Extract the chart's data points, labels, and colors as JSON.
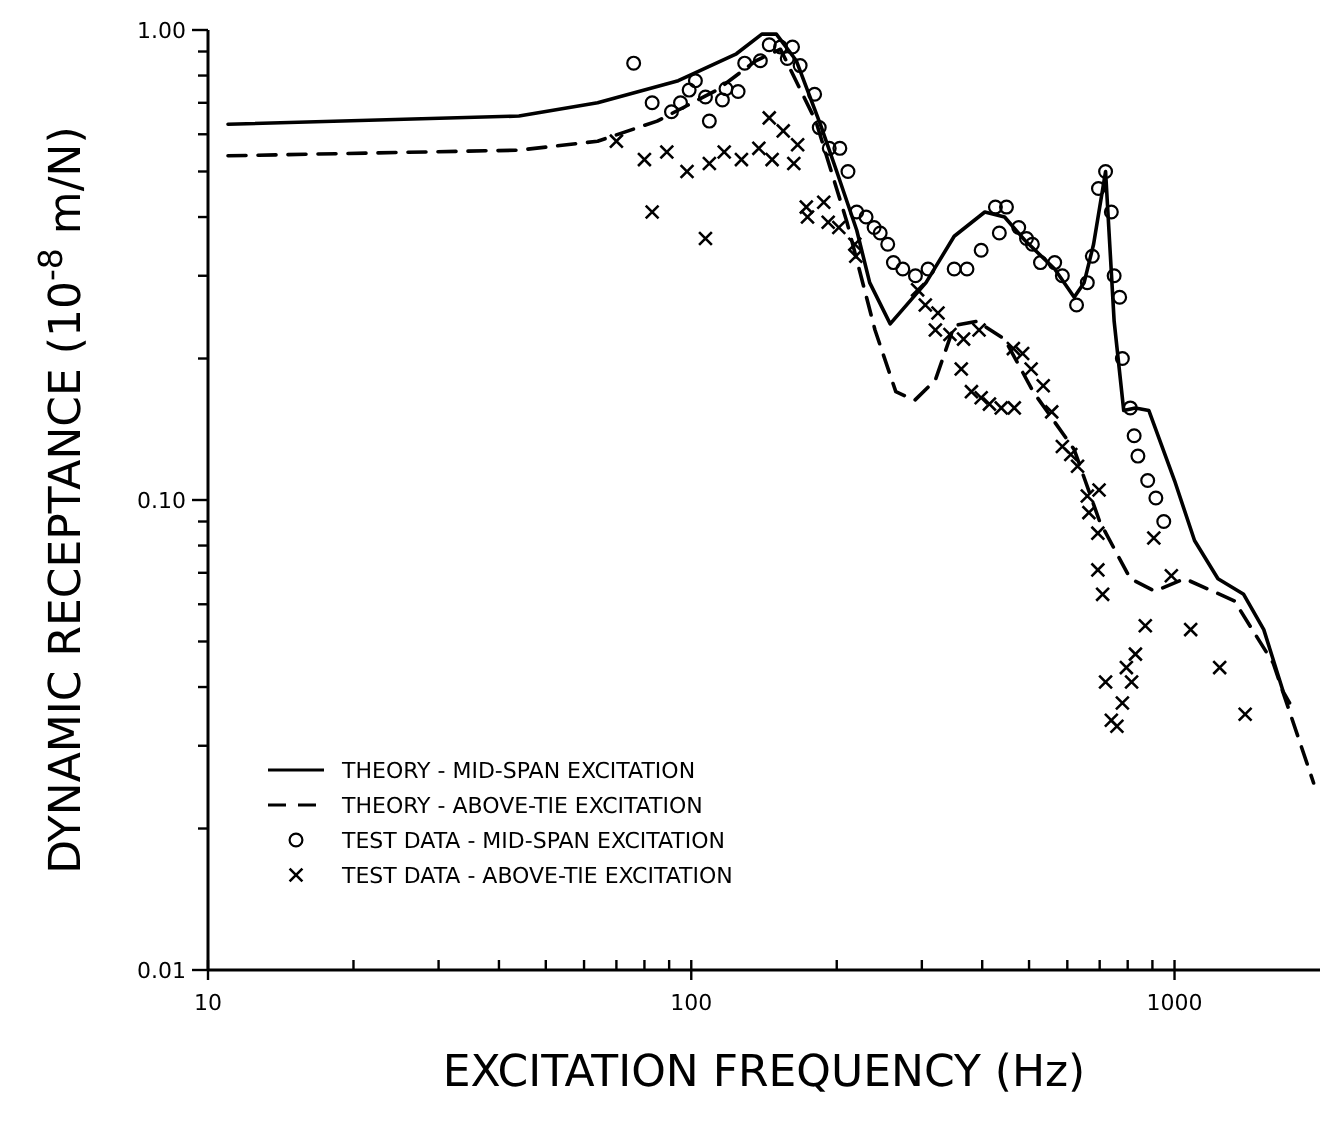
{
  "chart_data": {
    "type": "line",
    "xlabel": "EXCITATION FREQUENCY (Hz)",
    "ylabel": "DYNAMIC RECEPTANCE (10$^{-8}$ m/N)",
    "log": "xy",
    "xlim": [
      10,
      2000
    ],
    "ylim": [
      0.01,
      1.0
    ],
    "xticks": [
      10,
      {
        "value": 20,
        "label": null
      },
      {
        "value": 30,
        "label": null
      },
      {
        "value": 40,
        "label": null
      },
      {
        "value": 50,
        "label": null
      },
      {
        "value": 60,
        "label": null
      },
      {
        "value": 70,
        "label": null
      },
      {
        "value": 80,
        "label": null
      },
      {
        "value": 90,
        "label": null
      },
      100,
      {
        "value": 200,
        "label": null
      },
      {
        "value": 300,
        "label": null
      },
      {
        "value": 400,
        "label": null
      },
      {
        "value": 500,
        "label": null
      },
      {
        "value": 600,
        "label": null
      },
      {
        "value": 700,
        "label": null
      },
      {
        "value": 800,
        "label": null
      },
      {
        "value": 900,
        "label": null
      },
      1000
    ],
    "yticks": [
      {
        "value": 0.01,
        "label": "0.01"
      },
      {
        "value": 0.02,
        "label": null
      },
      {
        "value": 0.03,
        "label": null
      },
      {
        "value": 0.04,
        "label": null
      },
      {
        "value": 0.05,
        "label": null
      },
      {
        "value": 0.06,
        "label": null
      },
      {
        "value": 0.07,
        "label": null
      },
      {
        "value": 0.08,
        "label": null
      },
      {
        "value": 0.09,
        "label": null
      },
      {
        "value": 0.1,
        "label": "0.10"
      },
      {
        "value": 0.2,
        "label": null
      },
      {
        "value": 0.3,
        "label": null
      },
      {
        "value": 0.4,
        "label": null
      },
      {
        "value": 0.5,
        "label": null
      },
      {
        "value": 0.6,
        "label": null
      },
      {
        "value": 0.7,
        "label": null
      },
      {
        "value": 0.8,
        "label": null
      },
      {
        "value": 0.9,
        "label": null
      },
      {
        "value": 1.0,
        "label": "1.00"
      }
    ],
    "grid": false,
    "legend": "bottom left",
    "series": [
      {
        "name": "THEORY - MID-SPAN EXCITATION",
        "line_style": "solid",
        "marker": "none",
        "color": "#000000",
        "x": [
          11,
          44,
          64,
          94,
          124,
          140,
          150,
          165,
          185,
          200,
          220,
          234,
          258,
          306,
          350,
          405,
          445,
          490,
          565,
          620,
          650,
          680,
          720,
          750,
          785,
          830,
          885,
          1000,
          1100,
          1230,
          1390,
          1530,
          1680,
          1730
        ],
        "values": [
          0.63,
          0.656,
          0.7,
          0.78,
          0.89,
          0.98,
          0.98,
          0.86,
          0.63,
          0.5,
          0.375,
          0.29,
          0.237,
          0.29,
          0.364,
          0.41,
          0.4,
          0.357,
          0.31,
          0.27,
          0.29,
          0.35,
          0.5,
          0.24,
          0.155,
          0.157,
          0.155,
          0.11,
          0.082,
          0.068,
          0.063,
          0.053,
          0.039,
          0.037
        ]
      },
      {
        "name": "THEORY - ABOVE-TIE EXCITATION",
        "line_style": "dashed",
        "marker": "none",
        "color": "#000000",
        "x": [
          11,
          44,
          64,
          85,
          113,
          136,
          153,
          181,
          210,
          240,
          265,
          290,
          320,
          350,
          390,
          445,
          510,
          620,
          700,
          810,
          910,
          1050,
          1330,
          1600,
          1940
        ],
        "values": [
          0.54,
          0.555,
          0.58,
          0.64,
          0.745,
          0.86,
          0.91,
          0.64,
          0.39,
          0.23,
          0.17,
          0.163,
          0.18,
          0.235,
          0.24,
          0.22,
          0.17,
          0.128,
          0.09,
          0.068,
          0.064,
          0.068,
          0.061,
          0.045,
          0.025
        ]
      },
      {
        "name": "TEST DATA - MID-SPAN EXCITATION",
        "type": "scatter",
        "marker": "circle",
        "color": "#000000",
        "x": [
          76,
          83,
          91,
          95,
          99,
          102,
          107,
          109,
          116,
          118,
          125,
          129,
          139,
          145,
          153,
          162,
          158,
          168,
          180,
          184,
          193,
          203,
          211,
          220,
          230,
          239,
          246,
          255,
          262,
          274,
          291,
          309,
          350,
          372,
          398,
          426,
          449,
          434,
          476,
          494,
          508,
          528,
          565,
          586,
          627,
          660,
          676,
          696,
          720,
          740,
          750,
          770,
          780,
          810,
          825,
          840,
          880,
          915,
          950
        ],
        "values": [
          0.85,
          0.7,
          0.67,
          0.7,
          0.745,
          0.78,
          0.72,
          0.64,
          0.71,
          0.75,
          0.74,
          0.85,
          0.86,
          0.93,
          0.92,
          0.92,
          0.87,
          0.84,
          0.73,
          0.62,
          0.56,
          0.56,
          0.5,
          0.41,
          0.4,
          0.38,
          0.37,
          0.35,
          0.32,
          0.31,
          0.3,
          0.31,
          0.31,
          0.31,
          0.34,
          0.42,
          0.42,
          0.37,
          0.38,
          0.36,
          0.35,
          0.32,
          0.32,
          0.3,
          0.26,
          0.29,
          0.33,
          0.46,
          0.5,
          0.41,
          0.3,
          0.27,
          0.2,
          0.157,
          0.137,
          0.124,
          0.11,
          0.101,
          0.09
        ]
      },
      {
        "name": "TEST DATA - ABOVE-TIE EXCITATION",
        "type": "scatter",
        "marker": "cross",
        "color": "#000000",
        "x": [
          70,
          80,
          89,
          83,
          98,
          109,
          107,
          117,
          127,
          138,
          147,
          145,
          155,
          166,
          163,
          173,
          174,
          188,
          192,
          202,
          218,
          219,
          294,
          305,
          324,
          320,
          343,
          366,
          394,
          362,
          380,
          398,
          414,
          438,
          466,
          464,
          485,
          505,
          535,
          557,
          586,
          610,
          630,
          660,
          698,
          665,
          694,
          694,
          710,
          906,
          985,
          870,
          1080,
          1240,
          1400,
          720,
          795,
          830,
          815,
          780,
          740,
          760
        ],
        "values": [
          0.58,
          0.53,
          0.55,
          0.41,
          0.5,
          0.52,
          0.36,
          0.55,
          0.53,
          0.56,
          0.53,
          0.65,
          0.61,
          0.57,
          0.52,
          0.42,
          0.4,
          0.43,
          0.39,
          0.38,
          0.35,
          0.33,
          0.28,
          0.26,
          0.25,
          0.23,
          0.225,
          0.22,
          0.23,
          0.19,
          0.17,
          0.165,
          0.16,
          0.157,
          0.157,
          0.21,
          0.205,
          0.19,
          0.175,
          0.154,
          0.13,
          0.125,
          0.118,
          0.102,
          0.105,
          0.094,
          0.085,
          0.071,
          0.063,
          0.083,
          0.069,
          0.054,
          0.053,
          0.044,
          0.035,
          0.041,
          0.044,
          0.047,
          0.041,
          0.037,
          0.034,
          0.033
        ]
      }
    ]
  }
}
